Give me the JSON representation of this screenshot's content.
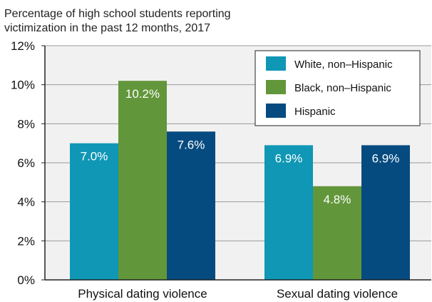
{
  "chart_data": {
    "type": "bar",
    "title_lines": [
      "Percentage of high school students reporting",
      "victimization in the past 12 months, 2017"
    ],
    "categories": [
      "Physical dating violence",
      "Sexual dating violence"
    ],
    "series": [
      {
        "name": "White, non–Hispanic",
        "values": [
          7.0,
          6.9
        ],
        "labels": [
          "7.0%",
          "6.9%"
        ],
        "color": "#0f97b5"
      },
      {
        "name": "Black, non–Hispanic",
        "values": [
          10.2,
          4.8
        ],
        "labels": [
          "10.2%",
          "4.8%"
        ],
        "color": "#62963a"
      },
      {
        "name": "Hispanic",
        "values": [
          7.6,
          6.9
        ],
        "labels": [
          "7.6%",
          "6.9%"
        ],
        "color": "#064b80"
      }
    ],
    "ylim": [
      0,
      12
    ],
    "y_ticks": [
      0,
      2,
      4,
      6,
      8,
      10,
      12
    ],
    "y_tick_labels": [
      "0%",
      "2%",
      "4%",
      "6%",
      "8%",
      "10%",
      "12%"
    ],
    "grid": true,
    "legend_position": "top-right",
    "colors": {
      "plot_background": "#f1f1f1",
      "grid": "#9a9a9a"
    }
  }
}
